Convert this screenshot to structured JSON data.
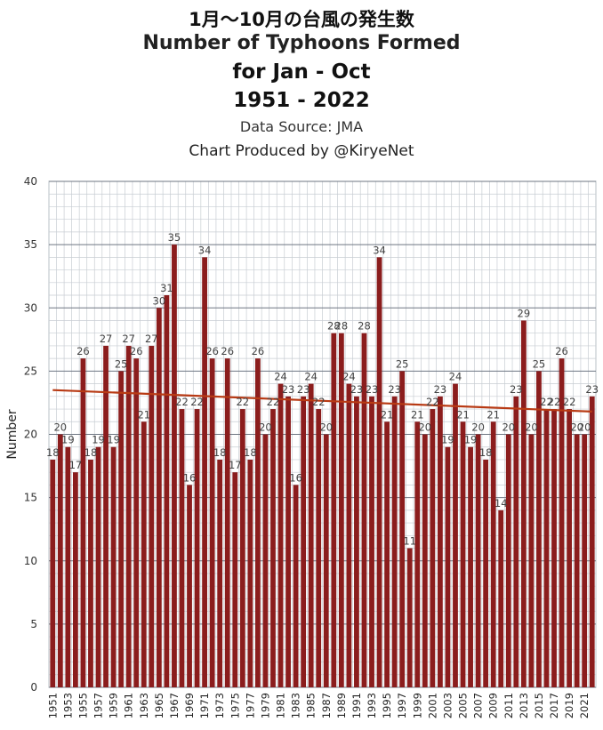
{
  "title_jp": "1月〜10月の台風の発生数",
  "title_en": "Number of Typhoons Formed",
  "subtitle1": "for Jan - Oct",
  "subtitle2": "1951 - 2022",
  "source": "Data Source: JMA",
  "credit": "Chart Produced by @KiryeNet",
  "colors": {
    "bar": "#8b1d1d",
    "trend": "#b83a14",
    "grid": "#c8cdd3",
    "major_grid": "#6e7682"
  },
  "chart_data": {
    "type": "bar",
    "ylabel": "Number",
    "xlabel": "",
    "ylim": [
      0,
      40
    ],
    "yticks": [
      0,
      5,
      10,
      15,
      20,
      25,
      30,
      35,
      40
    ],
    "x": [
      1951,
      1952,
      1953,
      1954,
      1955,
      1956,
      1957,
      1958,
      1959,
      1960,
      1961,
      1962,
      1963,
      1964,
      1965,
      1966,
      1967,
      1968,
      1969,
      1970,
      1971,
      1972,
      1973,
      1974,
      1975,
      1976,
      1977,
      1978,
      1979,
      1980,
      1981,
      1982,
      1983,
      1984,
      1985,
      1986,
      1987,
      1988,
      1989,
      1990,
      1991,
      1992,
      1993,
      1994,
      1995,
      1996,
      1997,
      1998,
      1999,
      2000,
      2001,
      2002,
      2003,
      2004,
      2005,
      2006,
      2007,
      2008,
      2009,
      2010,
      2011,
      2012,
      2013,
      2014,
      2015,
      2016,
      2017,
      2018,
      2019,
      2020,
      2021,
      2022
    ],
    "values": [
      18,
      20,
      19,
      17,
      26,
      18,
      19,
      27,
      19,
      25,
      27,
      26,
      21,
      27,
      30,
      31,
      35,
      22,
      16,
      22,
      34,
      26,
      18,
      26,
      17,
      22,
      18,
      26,
      20,
      22,
      24,
      23,
      16,
      23,
      24,
      22,
      20,
      28,
      28,
      24,
      23,
      28,
      23,
      34,
      21,
      23,
      25,
      11,
      21,
      20,
      22,
      23,
      19,
      24,
      21,
      19,
      20,
      18,
      21,
      14,
      20,
      23,
      29,
      20,
      25,
      22,
      22,
      26,
      22,
      20,
      20,
      23
    ],
    "trend": {
      "start": 23.5,
      "end": 21.8
    },
    "grid": true,
    "legend": "none"
  }
}
